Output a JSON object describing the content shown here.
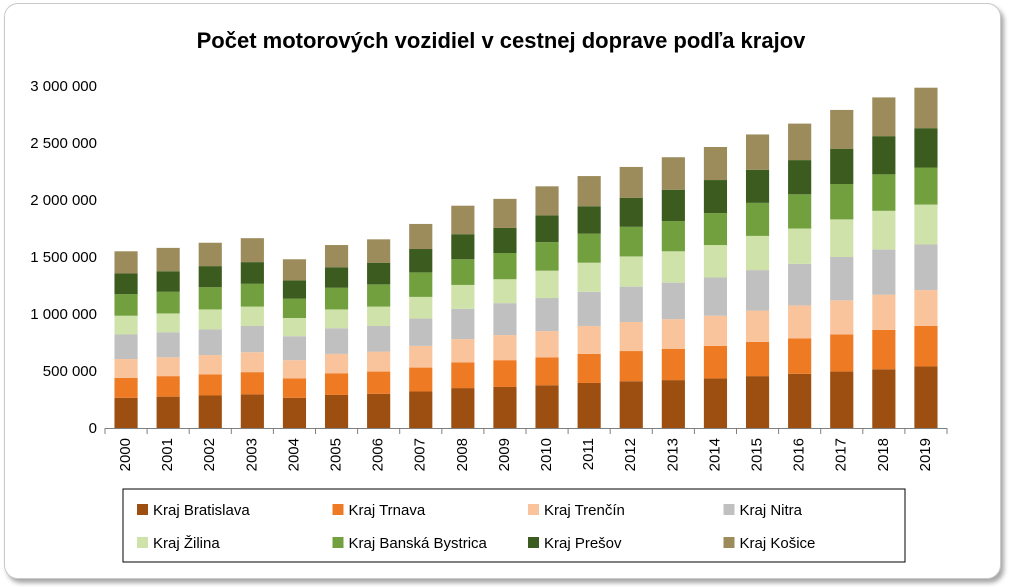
{
  "chart_data": {
    "type": "bar",
    "stacked": true,
    "title": "Počet motorových vozidiel v cestnej doprave podľa krajov",
    "xlabel": "",
    "ylabel": "",
    "ylim": [
      0,
      3000000
    ],
    "yticks": [
      0,
      500000,
      1000000,
      1500000,
      2000000,
      2500000,
      3000000
    ],
    "ytick_labels": [
      "0",
      "500 000",
      "1 000 000",
      "1 500 000",
      "2 000 000",
      "2 500 000",
      "3 000 000"
    ],
    "grid": false,
    "legend_position": "bottom",
    "categories": [
      "2000",
      "2001",
      "2002",
      "2003",
      "2004",
      "2005",
      "2006",
      "2007",
      "2008",
      "2009",
      "2010",
      "2011",
      "2012",
      "2013",
      "2014",
      "2015",
      "2016",
      "2017",
      "2018",
      "2019"
    ],
    "series": [
      {
        "name": "Kraj Bratislava",
        "color": "#9C4F10",
        "values": [
          265000,
          275000,
          285000,
          295000,
          265000,
          290000,
          300000,
          320000,
          350000,
          360000,
          375000,
          395000,
          410000,
          420000,
          435000,
          455000,
          475000,
          495000,
          515000,
          540000
        ]
      },
      {
        "name": "Kraj Trnava",
        "color": "#EE7A24",
        "values": [
          175000,
          180000,
          185000,
          195000,
          170000,
          190000,
          195000,
          210000,
          225000,
          235000,
          245000,
          255000,
          265000,
          275000,
          285000,
          300000,
          310000,
          325000,
          345000,
          355000
        ]
      },
      {
        "name": "Kraj Trenčín",
        "color": "#F9C49B",
        "values": [
          165000,
          165000,
          170000,
          175000,
          160000,
          170000,
          175000,
          190000,
          205000,
          220000,
          230000,
          245000,
          255000,
          260000,
          265000,
          275000,
          290000,
          300000,
          310000,
          315000
        ]
      },
      {
        "name": "Kraj Nitra",
        "color": "#C0C0C0",
        "values": [
          215000,
          220000,
          225000,
          230000,
          210000,
          225000,
          225000,
          240000,
          265000,
          280000,
          290000,
          300000,
          310000,
          320000,
          335000,
          355000,
          365000,
          380000,
          395000,
          400000
        ]
      },
      {
        "name": "Kraj Žilina",
        "color": "#CFE2AA",
        "values": [
          165000,
          165000,
          175000,
          170000,
          160000,
          165000,
          170000,
          190000,
          210000,
          210000,
          240000,
          255000,
          265000,
          275000,
          285000,
          300000,
          310000,
          330000,
          340000,
          350000
        ]
      },
      {
        "name": "Kraj Banská Bystrica",
        "color": "#72A03E",
        "values": [
          190000,
          190000,
          195000,
          200000,
          170000,
          190000,
          195000,
          215000,
          225000,
          230000,
          250000,
          255000,
          260000,
          265000,
          280000,
          290000,
          300000,
          310000,
          320000,
          325000
        ]
      },
      {
        "name": "Kraj Prešov",
        "color": "#3B5B1F",
        "values": [
          180000,
          180000,
          185000,
          190000,
          160000,
          180000,
          190000,
          205000,
          220000,
          220000,
          235000,
          240000,
          255000,
          275000,
          290000,
          290000,
          300000,
          310000,
          335000,
          345000
        ]
      },
      {
        "name": "Kraj Košice",
        "color": "#9C8B5B",
        "values": [
          195000,
          205000,
          205000,
          210000,
          185000,
          195000,
          205000,
          220000,
          250000,
          255000,
          255000,
          265000,
          270000,
          285000,
          290000,
          310000,
          320000,
          340000,
          340000,
          355000
        ]
      }
    ]
  }
}
